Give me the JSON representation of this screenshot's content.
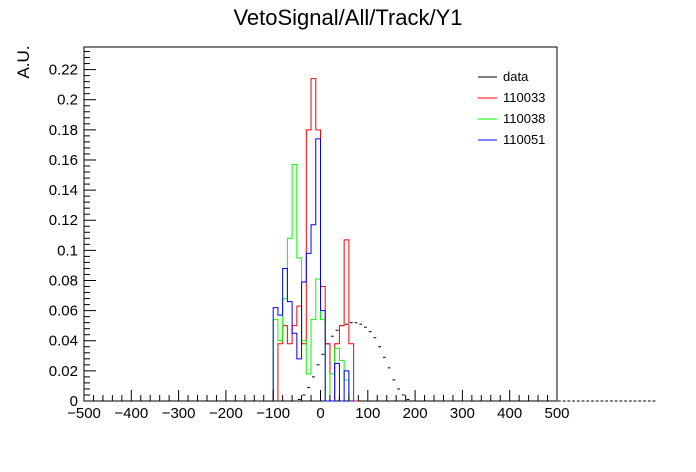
{
  "chart_data": {
    "type": "histogram",
    "title": "VetoSignal/All/Track/Y1",
    "xlabel": "",
    "ylabel": "A.U.",
    "xlim": [
      -500,
      500
    ],
    "ylim": [
      0,
      0.235
    ],
    "xticks": [
      -500,
      -400,
      -300,
      -200,
      -100,
      0,
      100,
      200,
      300,
      400,
      500
    ],
    "xtick_labels": [
      "−500",
      "−400",
      "−300",
      "−200",
      "−100",
      "0",
      "100",
      "200",
      "300",
      "400",
      "500"
    ],
    "yticks": [
      0,
      0.02,
      0.04,
      0.06,
      0.08,
      0.1,
      0.12,
      0.14,
      0.16,
      0.18,
      0.2,
      0.22
    ],
    "ytick_labels": [
      "0",
      "0.02",
      "0.04",
      "0.06",
      "0.08",
      "0.1",
      "0.12",
      "0.14",
      "0.16",
      "0.18",
      "0.2",
      "0.22"
    ],
    "grid": false,
    "legend_position": "top-right",
    "bin_edges_start": -500,
    "bin_width": 10,
    "series": [
      {
        "name": "data",
        "color": "#000000",
        "style": "errorbar-markers",
        "values": [
          0,
          0,
          0,
          0,
          0,
          0,
          0,
          0,
          0,
          0,
          0,
          0,
          0,
          0,
          0,
          0,
          0,
          0,
          0,
          0,
          0,
          0,
          0,
          0,
          0,
          0,
          0,
          0,
          0,
          0,
          0,
          0,
          0,
          0,
          0,
          0,
          0,
          0,
          0,
          0,
          0,
          0,
          0,
          0,
          0,
          0.001,
          0.004,
          0.009,
          0.016,
          0.024,
          0.031,
          0.038,
          0.043,
          0.047,
          0.05,
          0.051,
          0.052,
          0.052,
          0.051,
          0.049,
          0.046,
          0.042,
          0.036,
          0.029,
          0.022,
          0.014,
          0.008,
          0.004,
          0.001,
          0,
          0,
          0,
          0,
          0,
          0,
          0,
          0,
          0,
          0,
          0,
          0,
          0,
          0,
          0,
          0,
          0,
          0,
          0,
          0,
          0,
          0,
          0,
          0,
          0,
          0,
          0,
          0,
          0,
          0,
          0,
          0,
          0,
          0,
          0,
          0,
          0,
          0,
          0,
          0,
          0,
          0,
          0,
          0,
          0,
          0,
          0,
          0,
          0,
          0,
          0,
          0
        ]
      },
      {
        "name": "110033",
        "color": "#ff0000",
        "style": "step",
        "values": [
          0,
          0,
          0,
          0,
          0,
          0,
          0,
          0,
          0,
          0,
          0,
          0,
          0,
          0,
          0,
          0,
          0,
          0,
          0,
          0,
          0,
          0,
          0,
          0,
          0,
          0,
          0,
          0,
          0,
          0,
          0,
          0,
          0,
          0,
          0,
          0,
          0,
          0,
          0,
          0,
          0,
          0,
          0,
          0,
          0,
          0,
          0,
          0,
          0,
          0,
          0,
          0,
          0,
          0,
          0,
          0,
          0,
          0,
          0,
          0,
          0,
          0,
          0,
          0,
          0,
          0,
          0,
          0,
          0,
          0,
          0,
          0,
          0,
          0,
          0,
          0,
          0,
          0,
          0,
          0,
          0,
          0,
          0,
          0,
          0,
          0,
          0,
          0,
          0,
          0,
          0,
          0,
          0,
          0,
          0,
          0,
          0,
          0,
          0,
          0
        ],
        "nonzero_bins": [
          {
            "x0": -90,
            "y": 0.038
          },
          {
            "x0": -80,
            "y": 0.05
          },
          {
            "x0": -70,
            "y": 0.038
          },
          {
            "x0": -60,
            "y": 0.05
          },
          {
            "x0": -50,
            "y": 0.063
          },
          {
            "x0": -40,
            "y": 0.038
          },
          {
            "x0": -30,
            "y": 0.18
          },
          {
            "x0": -20,
            "y": 0.214
          },
          {
            "x0": -10,
            "y": 0.18
          },
          {
            "x0": 0,
            "y": 0.076
          },
          {
            "x0": 10,
            "y": 0.038
          },
          {
            "x0": 20,
            "y": 0.0
          },
          {
            "x0": 30,
            "y": 0.038
          },
          {
            "x0": 40,
            "y": 0.05
          },
          {
            "x0": 50,
            "y": 0.107
          },
          {
            "x0": 60,
            "y": 0.038
          },
          {
            "x0": 70,
            "y": 0.0
          }
        ]
      },
      {
        "name": "110038",
        "color": "#00ff00",
        "style": "step",
        "nonzero_bins": [
          {
            "x0": -100,
            "y": 0.054
          },
          {
            "x0": -90,
            "y": 0.04
          },
          {
            "x0": -80,
            "y": 0.068
          },
          {
            "x0": -70,
            "y": 0.108
          },
          {
            "x0": -60,
            "y": 0.157
          },
          {
            "x0": -50,
            "y": 0.095
          },
          {
            "x0": -40,
            "y": 0.04
          },
          {
            "x0": -30,
            "y": 0.018
          },
          {
            "x0": -20,
            "y": 0.054
          },
          {
            "x0": -10,
            "y": 0.081
          },
          {
            "x0": 0,
            "y": 0.054
          },
          {
            "x0": 10,
            "y": 0.0
          },
          {
            "x0": 20,
            "y": 0.018
          },
          {
            "x0": 30,
            "y": 0.035
          },
          {
            "x0": 40,
            "y": 0.027
          },
          {
            "x0": 50,
            "y": 0.014
          },
          {
            "x0": 60,
            "y": 0.0
          }
        ]
      },
      {
        "name": "110051",
        "color": "#0000ff",
        "style": "step",
        "nonzero_bins": [
          {
            "x0": -100,
            "y": 0.062
          },
          {
            "x0": -90,
            "y": 0.057
          },
          {
            "x0": -80,
            "y": 0.088
          },
          {
            "x0": -70,
            "y": 0.066
          },
          {
            "x0": -60,
            "y": 0.045
          },
          {
            "x0": -50,
            "y": 0.028
          },
          {
            "x0": -40,
            "y": 0.079
          },
          {
            "x0": -30,
            "y": 0.098
          },
          {
            "x0": -20,
            "y": 0.117
          },
          {
            "x0": -10,
            "y": 0.174
          },
          {
            "x0": 0,
            "y": 0.06
          },
          {
            "x0": 10,
            "y": 0.0
          },
          {
            "x0": 20,
            "y": 0.0
          },
          {
            "x0": 30,
            "y": 0.025
          },
          {
            "x0": 40,
            "y": 0.0
          },
          {
            "x0": 50,
            "y": 0.02
          },
          {
            "x0": 60,
            "y": 0.0
          }
        ]
      }
    ]
  }
}
